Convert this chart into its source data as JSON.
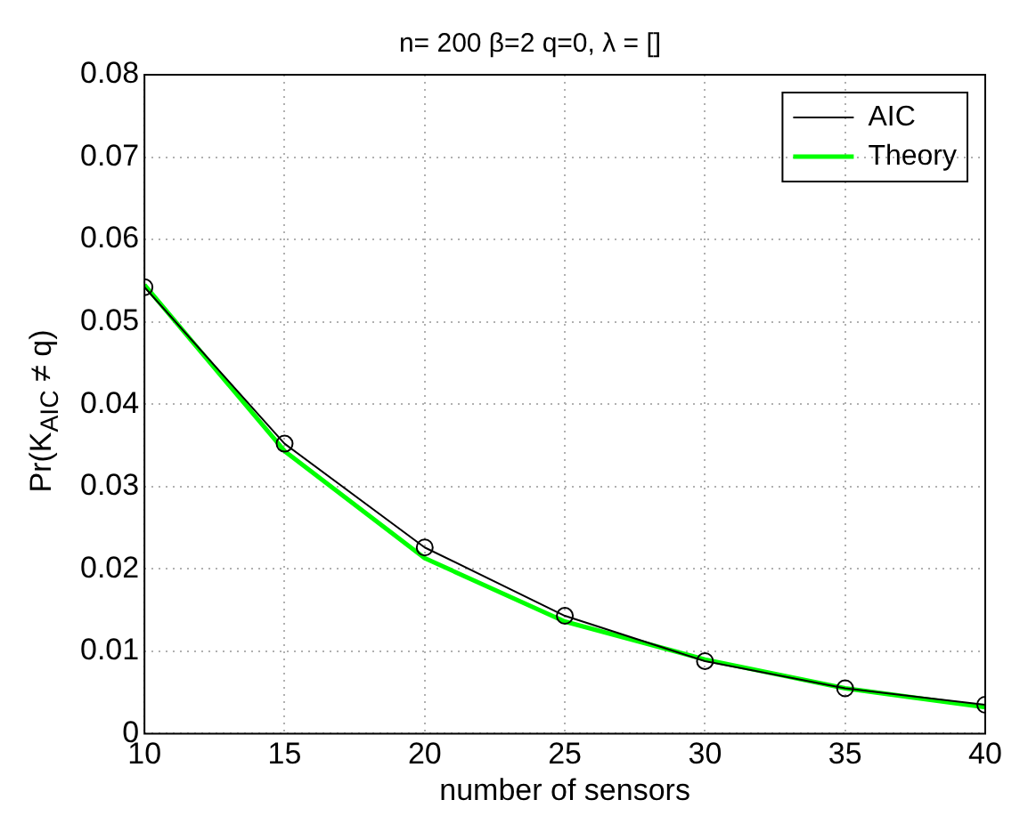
{
  "chart_data": {
    "type": "line",
    "title": "n= 200 β=2 q=0, λ = []",
    "xlabel": "number of sensors",
    "ylabel": "Pr(K$_{AIC}$ ≠ q)",
    "x": [
      10,
      15,
      20,
      25,
      30,
      35,
      40
    ],
    "series": [
      {
        "name": "AIC",
        "color": "#000000",
        "marker": "circle",
        "values": [
          0.0542,
          0.0352,
          0.0226,
          0.0143,
          0.0088,
          0.0055,
          0.0035
        ]
      },
      {
        "name": "Theory",
        "color": "#00ff00",
        "marker": "none",
        "values": [
          0.0545,
          0.0343,
          0.0213,
          0.0136,
          0.009,
          0.0055,
          0.0032
        ]
      }
    ],
    "xlim": [
      10,
      40
    ],
    "xticks": [
      10,
      15,
      20,
      25,
      30,
      35,
      40
    ],
    "ylim": [
      0,
      0.08
    ],
    "yticks": [
      0,
      0.01,
      0.02,
      0.03,
      0.04,
      0.05,
      0.06,
      0.07,
      0.08
    ],
    "grid": true,
    "legend": "top right",
    "line_style": "solid"
  }
}
